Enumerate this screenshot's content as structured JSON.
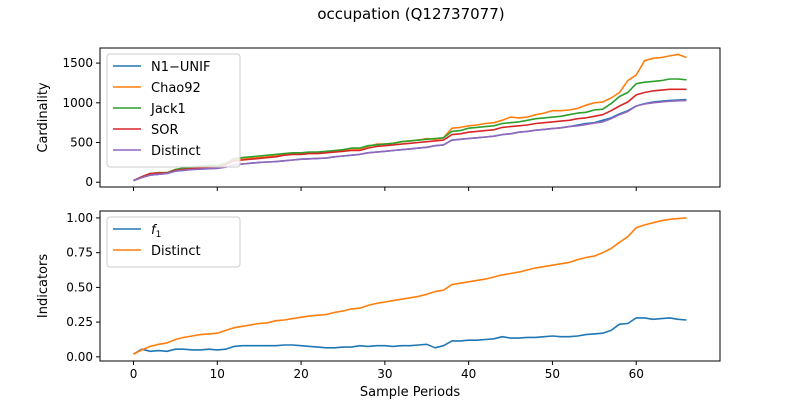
{
  "figure_title": "occupation (Q12737077)",
  "chart_data": [
    {
      "type": "line",
      "ylabel": "Cardinality",
      "xlabel": "",
      "xlim": [
        -4,
        70
      ],
      "ylim": [
        -60,
        1690
      ],
      "xticks": [
        0,
        10,
        20,
        30,
        40,
        50,
        60
      ],
      "yticks": [
        0,
        500,
        1000,
        1500
      ],
      "show_x_tick_labels": false,
      "grid": false,
      "legend": "upper-left",
      "x": [
        0,
        1,
        2,
        3,
        4,
        5,
        6,
        7,
        8,
        9,
        10,
        11,
        12,
        13,
        14,
        15,
        16,
        17,
        18,
        19,
        20,
        21,
        22,
        23,
        24,
        25,
        26,
        27,
        28,
        29,
        30,
        31,
        32,
        33,
        34,
        35,
        36,
        37,
        38,
        39,
        40,
        41,
        42,
        43,
        44,
        45,
        46,
        47,
        48,
        49,
        50,
        51,
        52,
        53,
        54,
        55,
        56,
        57,
        58,
        59,
        60,
        61,
        62,
        63,
        64,
        65,
        66
      ],
      "series": [
        {
          "name": "N1−UNIF",
          "color": "#1f77b4",
          "values": [
            20,
            60,
            90,
            100,
            110,
            140,
            150,
            160,
            165,
            170,
            175,
            190,
            220,
            230,
            240,
            250,
            255,
            260,
            270,
            280,
            290,
            295,
            300,
            305,
            320,
            330,
            340,
            350,
            370,
            380,
            390,
            400,
            410,
            420,
            430,
            440,
            460,
            470,
            530,
            540,
            550,
            560,
            570,
            580,
            600,
            610,
            630,
            640,
            655,
            665,
            675,
            685,
            700,
            720,
            740,
            750,
            780,
            810,
            860,
            900,
            960,
            990,
            1010,
            1020,
            1030,
            1035,
            1040
          ]
        },
        {
          "name": "Chao92",
          "color": "#ff7f0e",
          "values": [
            20,
            70,
            110,
            120,
            120,
            160,
            170,
            180,
            190,
            200,
            200,
            230,
            280,
            290,
            300,
            310,
            320,
            330,
            350,
            360,
            360,
            370,
            370,
            380,
            390,
            400,
            420,
            420,
            450,
            480,
            480,
            490,
            510,
            520,
            530,
            550,
            540,
            560,
            680,
            690,
            710,
            720,
            740,
            750,
            780,
            820,
            810,
            820,
            850,
            870,
            900,
            900,
            910,
            930,
            970,
            1000,
            1010,
            1060,
            1130,
            1280,
            1350,
            1530,
            1560,
            1570,
            1590,
            1610,
            1570
          ]
        },
        {
          "name": "Jack1",
          "color": "#2ca02c",
          "values": [
            20,
            70,
            110,
            120,
            120,
            160,
            180,
            190,
            200,
            210,
            210,
            240,
            300,
            310,
            320,
            330,
            340,
            350,
            360,
            370,
            370,
            380,
            380,
            390,
            400,
            410,
            430,
            430,
            460,
            470,
            480,
            490,
            510,
            520,
            530,
            540,
            550,
            560,
            640,
            650,
            680,
            690,
            700,
            710,
            740,
            750,
            760,
            780,
            800,
            810,
            820,
            830,
            850,
            870,
            880,
            910,
            920,
            990,
            1080,
            1130,
            1240,
            1260,
            1270,
            1280,
            1300,
            1300,
            1290
          ]
        },
        {
          "name": "SOR",
          "color": "#d62728",
          "values": [
            20,
            70,
            110,
            115,
            115,
            150,
            160,
            170,
            180,
            185,
            190,
            220,
            270,
            280,
            290,
            300,
            310,
            320,
            340,
            350,
            350,
            360,
            360,
            370,
            380,
            390,
            400,
            400,
            430,
            450,
            460,
            470,
            480,
            490,
            500,
            510,
            520,
            530,
            600,
            610,
            630,
            640,
            650,
            660,
            690,
            700,
            710,
            720,
            740,
            750,
            760,
            770,
            780,
            800,
            810,
            830,
            850,
            900,
            960,
            1010,
            1100,
            1130,
            1150,
            1160,
            1170,
            1170,
            1170
          ]
        },
        {
          "name": "Distinct",
          "color": "#9467bd",
          "values": [
            20,
            60,
            90,
            100,
            110,
            140,
            150,
            160,
            165,
            170,
            175,
            190,
            220,
            230,
            240,
            250,
            255,
            260,
            270,
            280,
            290,
            295,
            300,
            305,
            320,
            330,
            340,
            350,
            370,
            380,
            390,
            400,
            410,
            420,
            430,
            440,
            460,
            470,
            530,
            540,
            550,
            560,
            570,
            580,
            600,
            610,
            630,
            640,
            655,
            665,
            675,
            685,
            700,
            710,
            725,
            745,
            760,
            800,
            850,
            890,
            960,
            985,
            1000,
            1010,
            1020,
            1025,
            1030
          ]
        }
      ]
    },
    {
      "type": "line",
      "ylabel": "Indicators",
      "xlabel": "Sample Periods",
      "xlim": [
        -4,
        70
      ],
      "ylim": [
        -0.03,
        1.05
      ],
      "xticks": [
        0,
        10,
        20,
        30,
        40,
        50,
        60
      ],
      "yticks": [
        0.0,
        0.25,
        0.5,
        0.75,
        1.0
      ],
      "ytick_labels": [
        "0.00",
        "0.25",
        "0.50",
        "0.75",
        "1.00"
      ],
      "show_x_tick_labels": true,
      "grid": false,
      "legend": "upper-left",
      "x": [
        0,
        1,
        2,
        3,
        4,
        5,
        6,
        7,
        8,
        9,
        10,
        11,
        12,
        13,
        14,
        15,
        16,
        17,
        18,
        19,
        20,
        21,
        22,
        23,
        24,
        25,
        26,
        27,
        28,
        29,
        30,
        31,
        32,
        33,
        34,
        35,
        36,
        37,
        38,
        39,
        40,
        41,
        42,
        43,
        44,
        45,
        46,
        47,
        48,
        49,
        50,
        51,
        52,
        53,
        54,
        55,
        56,
        57,
        58,
        59,
        60,
        61,
        62,
        63,
        64,
        65,
        66
      ],
      "series": [
        {
          "name": "f",
          "name_subscript": "1",
          "color": "#1f77b4",
          "values": [
            0.02,
            0.055,
            0.04,
            0.045,
            0.04,
            0.055,
            0.055,
            0.05,
            0.05,
            0.055,
            0.05,
            0.055,
            0.075,
            0.08,
            0.08,
            0.08,
            0.08,
            0.08,
            0.085,
            0.085,
            0.08,
            0.075,
            0.07,
            0.065,
            0.065,
            0.07,
            0.07,
            0.08,
            0.075,
            0.08,
            0.08,
            0.075,
            0.08,
            0.08,
            0.085,
            0.09,
            0.065,
            0.08,
            0.115,
            0.115,
            0.12,
            0.12,
            0.125,
            0.13,
            0.145,
            0.135,
            0.135,
            0.14,
            0.14,
            0.145,
            0.15,
            0.145,
            0.145,
            0.15,
            0.16,
            0.165,
            0.17,
            0.19,
            0.235,
            0.24,
            0.28,
            0.28,
            0.27,
            0.275,
            0.28,
            0.27,
            0.265
          ]
        },
        {
          "name": "Distinct",
          "name_subscript": "",
          "color": "#ff7f0e",
          "values": [
            0.02,
            0.05,
            0.075,
            0.09,
            0.1,
            0.125,
            0.14,
            0.15,
            0.16,
            0.165,
            0.17,
            0.19,
            0.21,
            0.22,
            0.23,
            0.24,
            0.245,
            0.26,
            0.265,
            0.275,
            0.285,
            0.295,
            0.3,
            0.305,
            0.32,
            0.33,
            0.345,
            0.35,
            0.37,
            0.385,
            0.395,
            0.405,
            0.415,
            0.425,
            0.435,
            0.45,
            0.47,
            0.48,
            0.52,
            0.53,
            0.54,
            0.55,
            0.56,
            0.575,
            0.59,
            0.6,
            0.61,
            0.625,
            0.64,
            0.65,
            0.66,
            0.67,
            0.68,
            0.7,
            0.715,
            0.725,
            0.75,
            0.78,
            0.825,
            0.865,
            0.93,
            0.95,
            0.965,
            0.98,
            0.99,
            0.995,
            1.0
          ]
        }
      ]
    }
  ]
}
